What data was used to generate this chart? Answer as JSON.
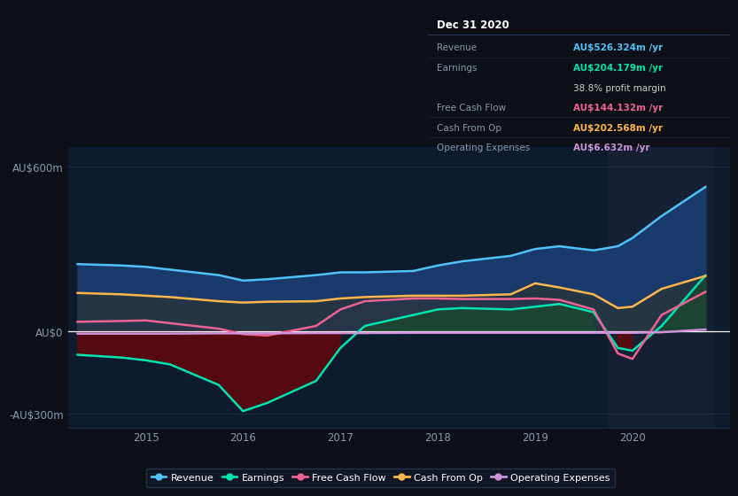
{
  "bg_color": "#0d1117",
  "plot_bg_color": "#0d1b2e",
  "highlight_bg": "#162035",
  "grid_color": "#1e2d45",
  "zero_line_color": "#ffffff",
  "years": [
    2014.3,
    2014.75,
    2015.0,
    2015.25,
    2015.75,
    2016.0,
    2016.25,
    2016.75,
    2017.0,
    2017.25,
    2017.75,
    2018.0,
    2018.25,
    2018.75,
    2019.0,
    2019.25,
    2019.6,
    2019.85,
    2020.0,
    2020.3,
    2020.75
  ],
  "revenue": [
    245,
    240,
    235,
    225,
    205,
    185,
    190,
    205,
    215,
    215,
    220,
    240,
    255,
    275,
    300,
    310,
    295,
    310,
    340,
    420,
    526
  ],
  "earnings": [
    -85,
    -95,
    -105,
    -120,
    -195,
    -290,
    -260,
    -180,
    -60,
    20,
    60,
    80,
    85,
    80,
    90,
    100,
    70,
    -60,
    -70,
    20,
    204
  ],
  "free_cash": [
    35,
    38,
    40,
    30,
    10,
    -10,
    -15,
    20,
    80,
    110,
    120,
    120,
    118,
    118,
    120,
    115,
    80,
    -80,
    -100,
    60,
    144
  ],
  "cash_from_op": [
    140,
    135,
    130,
    125,
    110,
    105,
    108,
    110,
    120,
    125,
    130,
    130,
    130,
    135,
    175,
    160,
    135,
    85,
    90,
    155,
    202
  ],
  "op_expenses": [
    -8,
    -8,
    -8,
    -8,
    -7,
    -7,
    -7,
    -6,
    -6,
    -6,
    -5,
    -5,
    -5,
    -5,
    -5,
    -5,
    -5,
    -5,
    -5,
    -3,
    7
  ],
  "revenue_color": "#4fc3f7",
  "earnings_color": "#00e5b0",
  "free_cash_color": "#f06292",
  "cash_from_op_color": "#ffb74d",
  "op_expenses_color": "#ce93d8",
  "revenue_fill": "#1a3a6b",
  "earnings_fill_neg": "#5a0a10",
  "earnings_fill_pos": "#1a4a2a",
  "cash_from_op_fill": "#2a3a3a",
  "ylim": [
    -350,
    670
  ],
  "yticks": [
    -300,
    0,
    600
  ],
  "ytick_labels": [
    "-AU$300m",
    "AU$0",
    "AU$600m"
  ],
  "xticks": [
    2015,
    2016,
    2017,
    2018,
    2019,
    2020
  ],
  "xtick_labels": [
    "2015",
    "2016",
    "2017",
    "2018",
    "2019",
    "2020"
  ],
  "tooltip_title": "Dec 31 2020",
  "tooltip_rows": [
    {
      "label": "Revenue",
      "value": "AU$526.324m /yr",
      "color": "#4fc3f7"
    },
    {
      "label": "Earnings",
      "value": "AU$204.179m /yr",
      "color": "#00e5b0"
    },
    {
      "label": "",
      "value": "38.8% profit margin",
      "color": "#cccccc"
    },
    {
      "label": "Free Cash Flow",
      "value": "AU$144.132m /yr",
      "color": "#f06292"
    },
    {
      "label": "Cash From Op",
      "value": "AU$202.568m /yr",
      "color": "#ffb74d"
    },
    {
      "label": "Operating Expenses",
      "value": "AU$6.632m /yr",
      "color": "#ce93d8"
    }
  ],
  "legend_items": [
    {
      "label": "Revenue",
      "color": "#4fc3f7"
    },
    {
      "label": "Earnings",
      "color": "#00e5b0"
    },
    {
      "label": "Free Cash Flow",
      "color": "#f06292"
    },
    {
      "label": "Cash From Op",
      "color": "#ffb74d"
    },
    {
      "label": "Operating Expenses",
      "color": "#ce93d8"
    }
  ]
}
